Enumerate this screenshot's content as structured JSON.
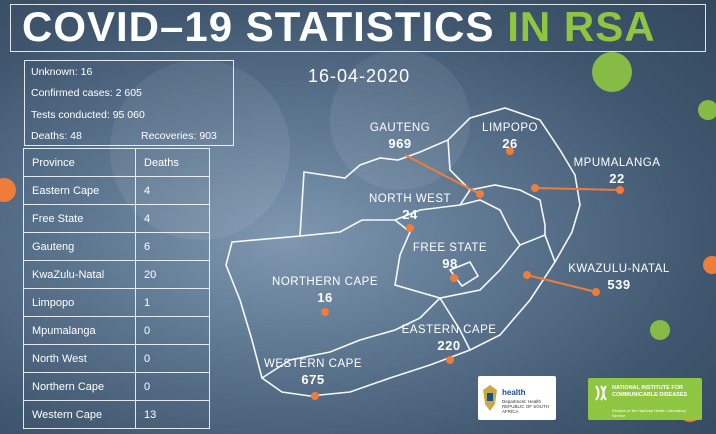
{
  "title": {
    "main": "COVID–19 STATISTICS",
    "highlight": "IN RSA"
  },
  "date": "16-04-2020",
  "summary": {
    "unknown": "Unknown: 16",
    "confirmed": "Confirmed cases: 2 605",
    "tests": "Tests conducted: 95 060",
    "deaths": "Deaths: 48",
    "recoveries": "Recoveries: 903"
  },
  "table": {
    "headers": [
      "Province",
      "Deaths"
    ],
    "rows": [
      [
        "Eastern Cape",
        "4"
      ],
      [
        "Free State",
        "4"
      ],
      [
        "Gauteng",
        "6"
      ],
      [
        "KwaZulu-Natal",
        "20"
      ],
      [
        "Limpopo",
        "1"
      ],
      [
        "Mpumalanga",
        "0"
      ],
      [
        "North West",
        "0"
      ],
      [
        "Northern Cape",
        "0"
      ],
      [
        "Western Cape",
        "13"
      ]
    ]
  },
  "map": {
    "gauteng": {
      "name": "GAUTENG",
      "value": "969"
    },
    "limpopo": {
      "name": "LIMPOPO",
      "value": "26"
    },
    "mpumalanga": {
      "name": "MPUMALANGA",
      "value": "22"
    },
    "north_west": {
      "name": "NORTH WEST",
      "value": "24"
    },
    "free_state": {
      "name": "FREE STATE",
      "value": "98"
    },
    "kwazulu_natal": {
      "name": "KWAZULU-NATAL",
      "value": "539"
    },
    "northern_cape": {
      "name": "NORTHERN CAPE",
      "value": "16"
    },
    "eastern_cape": {
      "name": "EASTERN CAPE",
      "value": "220"
    },
    "western_cape": {
      "name": "WESTERN CAPE",
      "value": "675"
    }
  },
  "logos": {
    "health": {
      "name": "health",
      "sub": "Department: Health REPUBLIC OF SOUTH AFRICA"
    },
    "nicd": {
      "name": "NATIONAL INSTITUTE FOR COMMUNICABLE DISEASES",
      "sub": "Division of the National Health Laboratory Service"
    }
  },
  "colors": {
    "accent": "#8ec641",
    "marker": "#ee7d3b",
    "background": "#4e6780"
  }
}
